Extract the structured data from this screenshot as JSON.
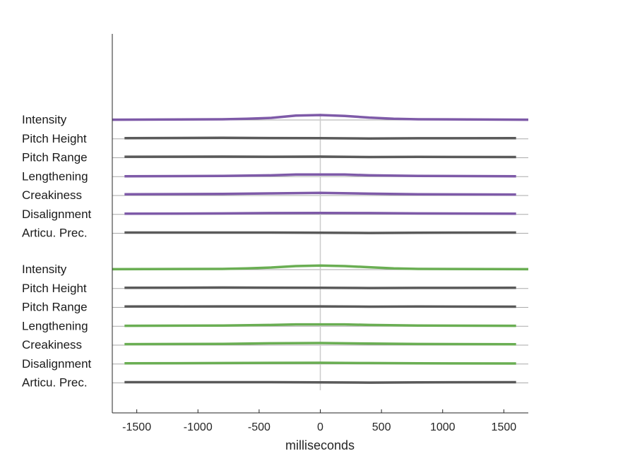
{
  "chart_data": {
    "type": "line",
    "xlabel": "milliseconds",
    "xlim": [
      -1700,
      1700
    ],
    "xticks": [
      -1500,
      -1000,
      -500,
      0,
      500,
      1000,
      1500
    ],
    "grid": false,
    "zero_line": true,
    "colors": {
      "purple": "#7e5aa8",
      "green": "#6aae53",
      "gray": "#5a5a5a",
      "baseline": "#aaaaaa",
      "zero": "#cccccc"
    },
    "groups": [
      {
        "accent": "purple",
        "rows": [
          {
            "label": "Intensity",
            "color": "purple",
            "x": [
              -1700,
              -800,
              -600,
              -400,
              -200,
              0,
              200,
              400,
              600,
              800,
              1700
            ],
            "y": [
              -0.15,
              0.0,
              0.2,
              0.5,
              1.3,
              1.5,
              1.2,
              0.6,
              0.2,
              0.0,
              -0.15
            ]
          },
          {
            "label": "Pitch Height",
            "color": "gray",
            "x": [
              -1600,
              -800,
              -400,
              0,
              400,
              800,
              1600
            ],
            "y": [
              0.0,
              0.1,
              0.05,
              0.0,
              -0.1,
              -0.05,
              0.0
            ]
          },
          {
            "label": "Pitch Range",
            "color": "gray",
            "x": [
              -1600,
              -800,
              -400,
              0,
              400,
              800,
              1600
            ],
            "y": [
              0.1,
              0.15,
              0.1,
              0.15,
              0.0,
              0.05,
              0.0
            ]
          },
          {
            "label": "Lengthening",
            "color": "purple",
            "x": [
              -1600,
              -800,
              -400,
              -200,
              0,
              200,
              400,
              800,
              1600
            ],
            "y": [
              -0.1,
              0.0,
              0.2,
              0.5,
              0.5,
              0.5,
              0.2,
              0.0,
              -0.1
            ]
          },
          {
            "label": "Creakiness",
            "color": "purple",
            "x": [
              -1600,
              -800,
              -400,
              0,
              400,
              800,
              1600
            ],
            "y": [
              0.2,
              0.3,
              0.5,
              0.7,
              0.4,
              0.2,
              0.1
            ]
          },
          {
            "label": "Disalignment",
            "color": "purple",
            "x": [
              -1600,
              -800,
              -400,
              0,
              400,
              800,
              1600
            ],
            "y": [
              0.0,
              0.1,
              0.2,
              0.25,
              0.2,
              0.1,
              0.0
            ]
          },
          {
            "label": "Articu. Prec.",
            "color": "gray",
            "x": [
              -1600,
              -800,
              -400,
              0,
              400,
              800,
              1600
            ],
            "y": [
              0.0,
              0.0,
              0.0,
              -0.05,
              -0.15,
              -0.05,
              0.0
            ]
          }
        ]
      },
      {
        "accent": "green",
        "rows": [
          {
            "label": "Intensity",
            "color": "green",
            "x": [
              -1700,
              -800,
              -600,
              -400,
              -200,
              0,
              200,
              400,
              600,
              800,
              1700
            ],
            "y": [
              -0.1,
              0.0,
              0.2,
              0.5,
              1.0,
              1.2,
              1.0,
              0.6,
              0.2,
              0.0,
              -0.1
            ]
          },
          {
            "label": "Pitch Height",
            "color": "gray",
            "x": [
              -1600,
              -800,
              -400,
              0,
              400,
              800,
              1600
            ],
            "y": [
              0.0,
              0.1,
              0.05,
              0.0,
              -0.1,
              -0.05,
              0.0
            ]
          },
          {
            "label": "Pitch Range",
            "color": "gray",
            "x": [
              -1600,
              -800,
              -400,
              0,
              400,
              800,
              1600
            ],
            "y": [
              0.05,
              0.1,
              0.1,
              0.1,
              0.0,
              0.05,
              0.0
            ]
          },
          {
            "label": "Lengthening",
            "color": "green",
            "x": [
              -1600,
              -800,
              -400,
              -200,
              0,
              200,
              400,
              800,
              1600
            ],
            "y": [
              -0.1,
              0.0,
              0.2,
              0.4,
              0.4,
              0.4,
              0.2,
              0.0,
              -0.1
            ]
          },
          {
            "label": "Creakiness",
            "color": "green",
            "x": [
              -1600,
              -800,
              -400,
              0,
              400,
              800,
              1600
            ],
            "y": [
              0.1,
              0.2,
              0.4,
              0.5,
              0.3,
              0.15,
              0.05
            ]
          },
          {
            "label": "Disalignment",
            "color": "green",
            "x": [
              -1600,
              -800,
              -400,
              0,
              400,
              800,
              1600
            ],
            "y": [
              0.0,
              0.1,
              0.15,
              0.2,
              0.1,
              0.0,
              -0.05
            ]
          },
          {
            "label": "Articu. Prec.",
            "color": "gray",
            "x": [
              -1600,
              -800,
              -400,
              0,
              400,
              800,
              1600
            ],
            "y": [
              0.0,
              0.0,
              0.0,
              -0.05,
              -0.15,
              -0.05,
              0.0
            ]
          }
        ]
      }
    ]
  }
}
